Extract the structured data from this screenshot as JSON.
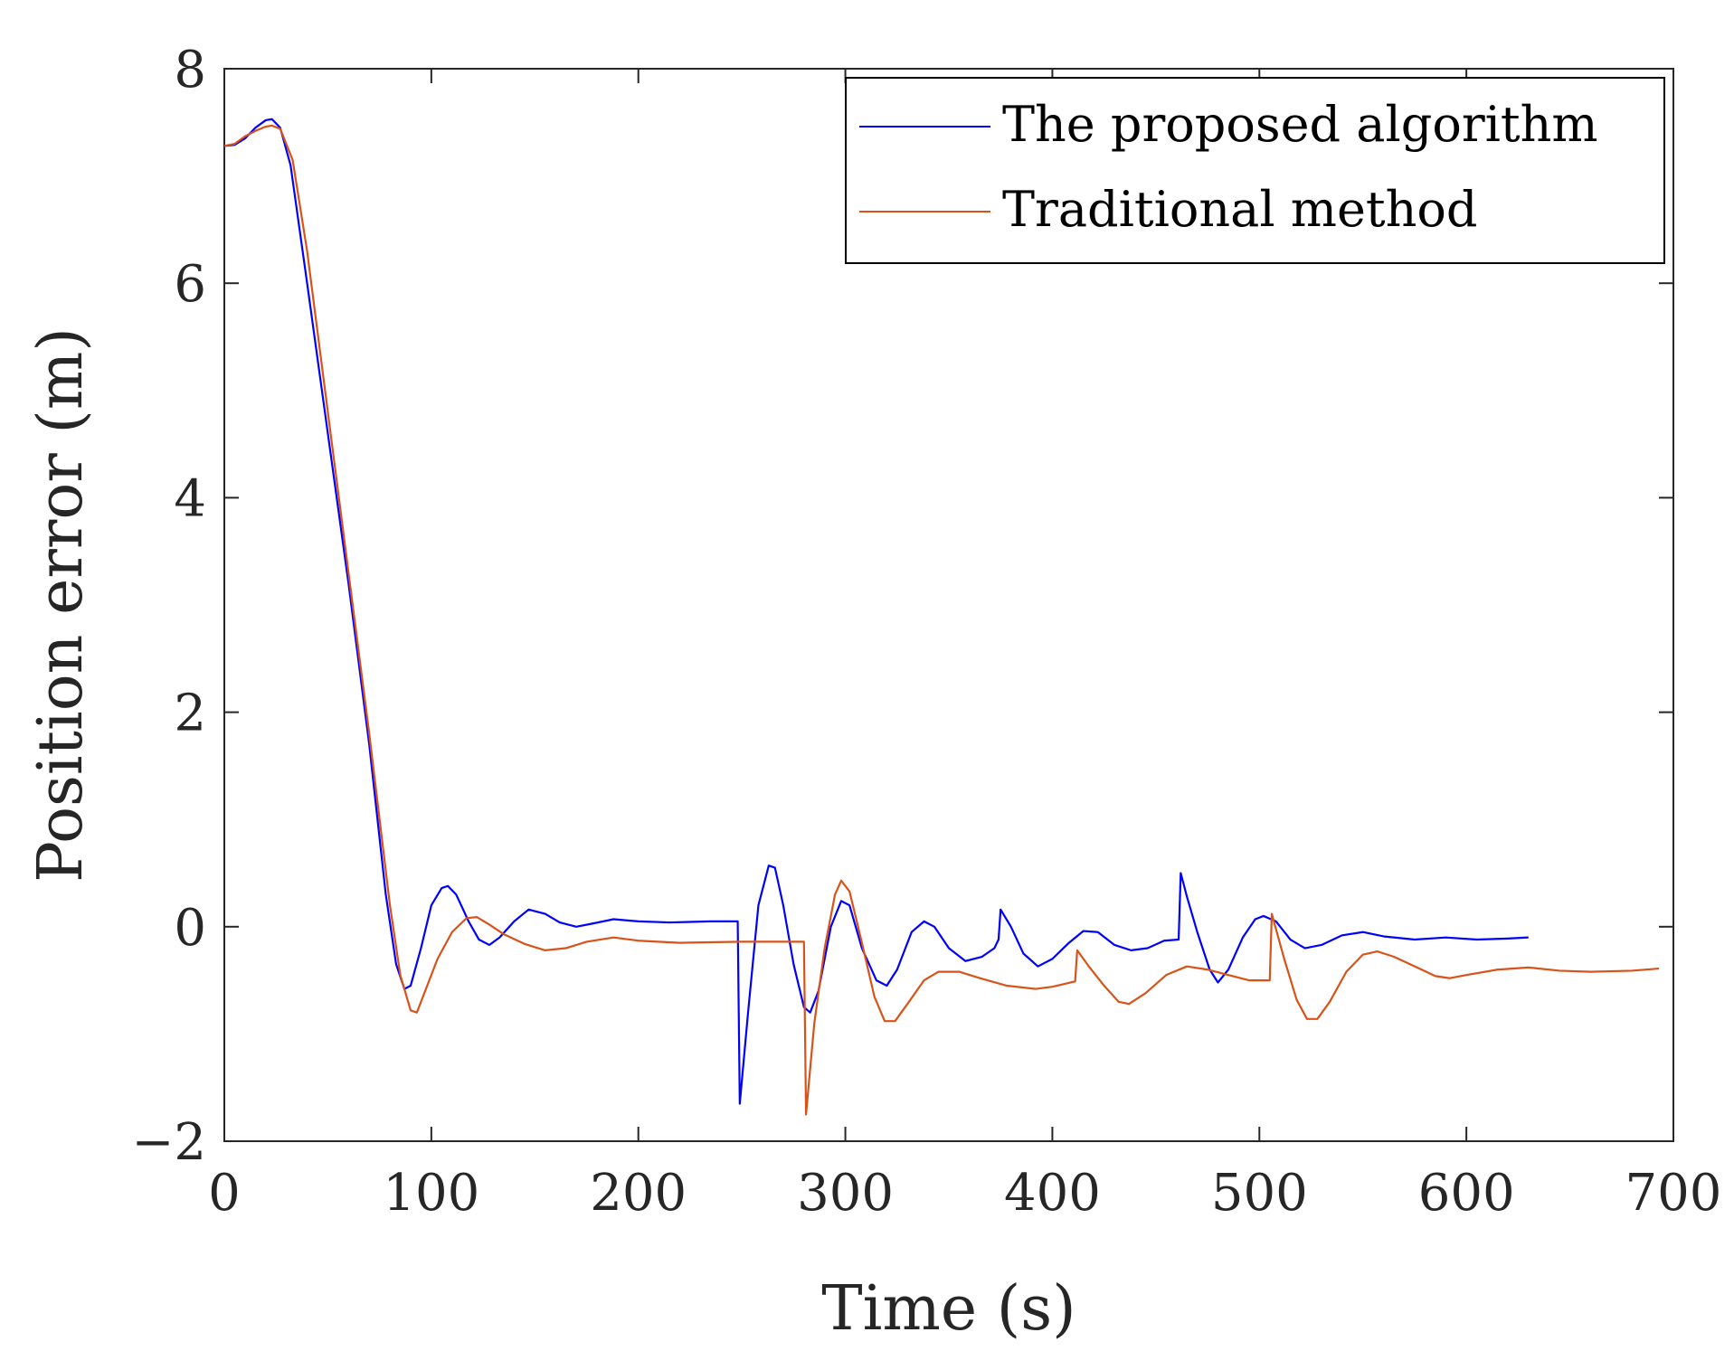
{
  "chart_data": {
    "type": "line",
    "title": "",
    "xlabel": "Time (s)",
    "ylabel": "Position error (m)",
    "xlim": [
      0,
      700
    ],
    "ylim": [
      -2,
      8
    ],
    "xticks": [
      0,
      100,
      200,
      300,
      400,
      500,
      600,
      700
    ],
    "yticks": [
      -2,
      0,
      2,
      4,
      6,
      8
    ],
    "xtick_labels": [
      "0",
      "100",
      "200",
      "300",
      "400",
      "500",
      "600",
      "700"
    ],
    "ytick_labels": [
      "−2",
      "0",
      "2",
      "4",
      "6",
      "8"
    ],
    "grid": false,
    "legend_position": "top-right",
    "series": [
      {
        "name": "The proposed algorithm",
        "color": "#0000ff",
        "points": [
          [
            0,
            7.28
          ],
          [
            5,
            7.29
          ],
          [
            10,
            7.35
          ],
          [
            15,
            7.45
          ],
          [
            20,
            7.52
          ],
          [
            23,
            7.53
          ],
          [
            27,
            7.45
          ],
          [
            32,
            7.1
          ],
          [
            40,
            6.0
          ],
          [
            50,
            4.6
          ],
          [
            60,
            3.2
          ],
          [
            70,
            1.7
          ],
          [
            78,
            0.3
          ],
          [
            83,
            -0.35
          ],
          [
            87,
            -0.58
          ],
          [
            90,
            -0.55
          ],
          [
            95,
            -0.2
          ],
          [
            100,
            0.2
          ],
          [
            105,
            0.36
          ],
          [
            108,
            0.38
          ],
          [
            112,
            0.3
          ],
          [
            118,
            0.05
          ],
          [
            123,
            -0.12
          ],
          [
            128,
            -0.17
          ],
          [
            133,
            -0.1
          ],
          [
            140,
            0.05
          ],
          [
            147,
            0.16
          ],
          [
            155,
            0.12
          ],
          [
            162,
            0.04
          ],
          [
            170,
            0.0
          ],
          [
            178,
            0.03
          ],
          [
            188,
            0.07
          ],
          [
            200,
            0.05
          ],
          [
            215,
            0.04
          ],
          [
            235,
            0.05
          ],
          [
            248,
            0.05
          ],
          [
            249,
            -1.65
          ],
          [
            253,
            -0.8
          ],
          [
            258,
            0.2
          ],
          [
            263,
            0.57
          ],
          [
            266,
            0.55
          ],
          [
            270,
            0.2
          ],
          [
            275,
            -0.35
          ],
          [
            280,
            -0.75
          ],
          [
            283,
            -0.8
          ],
          [
            287,
            -0.6
          ],
          [
            293,
            0.0
          ],
          [
            298,
            0.24
          ],
          [
            302,
            0.2
          ],
          [
            308,
            -0.2
          ],
          [
            315,
            -0.5
          ],
          [
            320,
            -0.55
          ],
          [
            325,
            -0.4
          ],
          [
            332,
            -0.05
          ],
          [
            338,
            0.05
          ],
          [
            343,
            0.0
          ],
          [
            350,
            -0.2
          ],
          [
            358,
            -0.32
          ],
          [
            366,
            -0.28
          ],
          [
            372,
            -0.2
          ],
          [
            374,
            -0.12
          ],
          [
            375,
            0.16
          ],
          [
            380,
            0.0
          ],
          [
            386,
            -0.25
          ],
          [
            393,
            -0.37
          ],
          [
            400,
            -0.3
          ],
          [
            408,
            -0.15
          ],
          [
            415,
            -0.04
          ],
          [
            422,
            -0.05
          ],
          [
            430,
            -0.17
          ],
          [
            438,
            -0.22
          ],
          [
            446,
            -0.2
          ],
          [
            454,
            -0.13
          ],
          [
            461,
            -0.12
          ],
          [
            462,
            0.5
          ],
          [
            465,
            0.28
          ],
          [
            470,
            -0.05
          ],
          [
            476,
            -0.4
          ],
          [
            480,
            -0.52
          ],
          [
            485,
            -0.4
          ],
          [
            492,
            -0.1
          ],
          [
            498,
            0.07
          ],
          [
            502,
            0.1
          ],
          [
            508,
            0.05
          ],
          [
            515,
            -0.12
          ],
          [
            522,
            -0.2
          ],
          [
            530,
            -0.17
          ],
          [
            540,
            -0.08
          ],
          [
            550,
            -0.05
          ],
          [
            560,
            -0.09
          ],
          [
            575,
            -0.12
          ],
          [
            590,
            -0.1
          ],
          [
            605,
            -0.12
          ],
          [
            620,
            -0.11
          ],
          [
            630,
            -0.1
          ]
        ]
      },
      {
        "name": "Traditional method",
        "color": "#d95319",
        "points": [
          [
            0,
            7.28
          ],
          [
            5,
            7.3
          ],
          [
            10,
            7.37
          ],
          [
            15,
            7.42
          ],
          [
            20,
            7.46
          ],
          [
            23,
            7.47
          ],
          [
            27,
            7.44
          ],
          [
            33,
            7.15
          ],
          [
            40,
            6.3
          ],
          [
            50,
            4.8
          ],
          [
            60,
            3.3
          ],
          [
            70,
            1.8
          ],
          [
            80,
            0.2
          ],
          [
            85,
            -0.45
          ],
          [
            90,
            -0.78
          ],
          [
            93,
            -0.8
          ],
          [
            97,
            -0.6
          ],
          [
            103,
            -0.3
          ],
          [
            110,
            -0.05
          ],
          [
            117,
            0.08
          ],
          [
            122,
            0.09
          ],
          [
            128,
            0.02
          ],
          [
            135,
            -0.07
          ],
          [
            145,
            -0.16
          ],
          [
            155,
            -0.22
          ],
          [
            165,
            -0.2
          ],
          [
            175,
            -0.14
          ],
          [
            188,
            -0.1
          ],
          [
            200,
            -0.13
          ],
          [
            220,
            -0.15
          ],
          [
            250,
            -0.14
          ],
          [
            280,
            -0.14
          ],
          [
            281,
            -1.75
          ],
          [
            285,
            -0.9
          ],
          [
            290,
            -0.2
          ],
          [
            295,
            0.3
          ],
          [
            298,
            0.43
          ],
          [
            302,
            0.33
          ],
          [
            308,
            -0.15
          ],
          [
            314,
            -0.65
          ],
          [
            319,
            -0.88
          ],
          [
            324,
            -0.88
          ],
          [
            330,
            -0.72
          ],
          [
            338,
            -0.5
          ],
          [
            345,
            -0.42
          ],
          [
            355,
            -0.42
          ],
          [
            365,
            -0.48
          ],
          [
            378,
            -0.55
          ],
          [
            392,
            -0.58
          ],
          [
            400,
            -0.56
          ],
          [
            411,
            -0.51
          ],
          [
            412,
            -0.22
          ],
          [
            418,
            -0.38
          ],
          [
            425,
            -0.55
          ],
          [
            432,
            -0.7
          ],
          [
            437,
            -0.72
          ],
          [
            445,
            -0.62
          ],
          [
            455,
            -0.45
          ],
          [
            465,
            -0.37
          ],
          [
            475,
            -0.4
          ],
          [
            485,
            -0.45
          ],
          [
            495,
            -0.5
          ],
          [
            505,
            -0.5
          ],
          [
            506,
            0.12
          ],
          [
            512,
            -0.3
          ],
          [
            518,
            -0.68
          ],
          [
            523,
            -0.86
          ],
          [
            528,
            -0.86
          ],
          [
            534,
            -0.7
          ],
          [
            542,
            -0.42
          ],
          [
            550,
            -0.26
          ],
          [
            557,
            -0.23
          ],
          [
            565,
            -0.28
          ],
          [
            575,
            -0.37
          ],
          [
            585,
            -0.46
          ],
          [
            592,
            -0.48
          ],
          [
            600,
            -0.45
          ],
          [
            615,
            -0.4
          ],
          [
            630,
            -0.38
          ],
          [
            645,
            -0.41
          ],
          [
            660,
            -0.42
          ],
          [
            680,
            -0.41
          ],
          [
            693,
            -0.39
          ]
        ]
      }
    ]
  }
}
